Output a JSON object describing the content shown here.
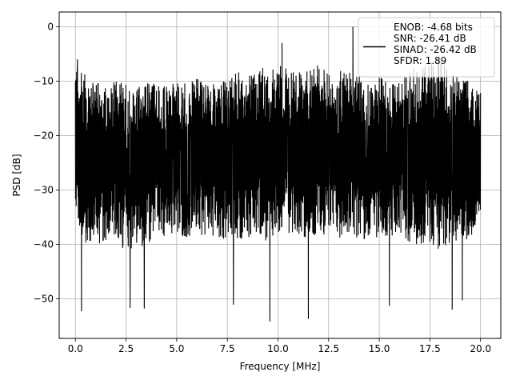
{
  "chart_data": {
    "type": "line",
    "title": "",
    "xlabel": "Frequency [MHz]",
    "ylabel": "PSD [dB]",
    "xlim": [
      -0.8,
      21.0
    ],
    "ylim": [
      -57.3,
      2.7
    ],
    "xticks": [
      0.0,
      2.5,
      5.0,
      7.5,
      10.0,
      12.5,
      15.0,
      17.5,
      20.0
    ],
    "xtick_labels": [
      "0.0",
      "2.5",
      "5.0",
      "7.5",
      "10.0",
      "12.5",
      "15.0",
      "17.5",
      "20.0"
    ],
    "yticks": [
      0,
      -10,
      -20,
      -30,
      -40,
      -50
    ],
    "ytick_labels": [
      "0",
      "−10",
      "−20",
      "−30",
      "−40",
      "−50"
    ],
    "grid": true,
    "legend_position": "top-right",
    "legend_lines": [
      "ENOB: -4.68 bits",
      "SNR: -26.41 dB",
      "SINAD: -26.42 dB",
      "SFDR: 1.89"
    ],
    "series": [
      {
        "color": "#000000",
        "x_range": [
          0.0,
          20.0
        ],
        "envelope_x": [
          0.0,
          0.5,
          1.0,
          1.5,
          2.0,
          2.5,
          3.0,
          3.5,
          4.0,
          4.5,
          5.0,
          5.5,
          6.0,
          6.5,
          7.0,
          7.5,
          8.0,
          8.5,
          9.0,
          9.5,
          10.0,
          10.5,
          11.0,
          11.5,
          12.0,
          12.5,
          13.0,
          13.5,
          14.0,
          14.5,
          15.0,
          15.5,
          16.0,
          16.5,
          17.0,
          17.5,
          18.0,
          18.5,
          19.0,
          19.5,
          20.0
        ],
        "envelope_max": [
          -7,
          -8,
          -10,
          -11,
          -10,
          -10,
          -11,
          -10,
          -10,
          -11,
          -10,
          -10,
          -9,
          -10,
          -9,
          -10,
          -8,
          -9,
          -8,
          -7,
          -6,
          -8,
          -8,
          -8,
          -7,
          -8,
          -8,
          -8,
          -9,
          -9,
          -9,
          -10,
          -10,
          -8,
          -7,
          -6,
          -6,
          -8,
          -9,
          -10,
          -12
        ],
        "envelope_min": [
          -35,
          -40,
          -40,
          -40,
          -39,
          -42,
          -40,
          -42,
          -38,
          -39,
          -38,
          -39,
          -39,
          -38,
          -39,
          -40,
          -39,
          -39,
          -38,
          -40,
          -38,
          -39,
          -39,
          -39,
          -39,
          -38,
          -39,
          -38,
          -39,
          -40,
          -39,
          -39,
          -38,
          -40,
          -40,
          -40,
          -41,
          -40,
          -40,
          -39,
          -34
        ],
        "peaks": [
          {
            "x": 13.7,
            "y": 0.0
          },
          {
            "x": 0.3,
            "y": -52.3
          },
          {
            "x": 2.7,
            "y": -51.7
          },
          {
            "x": 3.4,
            "y": -51.8
          },
          {
            "x": 7.8,
            "y": -51.1
          },
          {
            "x": 9.6,
            "y": -54.2
          },
          {
            "x": 11.5,
            "y": -53.7
          },
          {
            "x": 15.5,
            "y": -51.3
          },
          {
            "x": 18.6,
            "y": -52.0
          },
          {
            "x": 19.1,
            "y": -50.3
          },
          {
            "x": 10.2,
            "y": -3.0
          },
          {
            "x": 0.1,
            "y": -6.0
          }
        ]
      }
    ]
  }
}
